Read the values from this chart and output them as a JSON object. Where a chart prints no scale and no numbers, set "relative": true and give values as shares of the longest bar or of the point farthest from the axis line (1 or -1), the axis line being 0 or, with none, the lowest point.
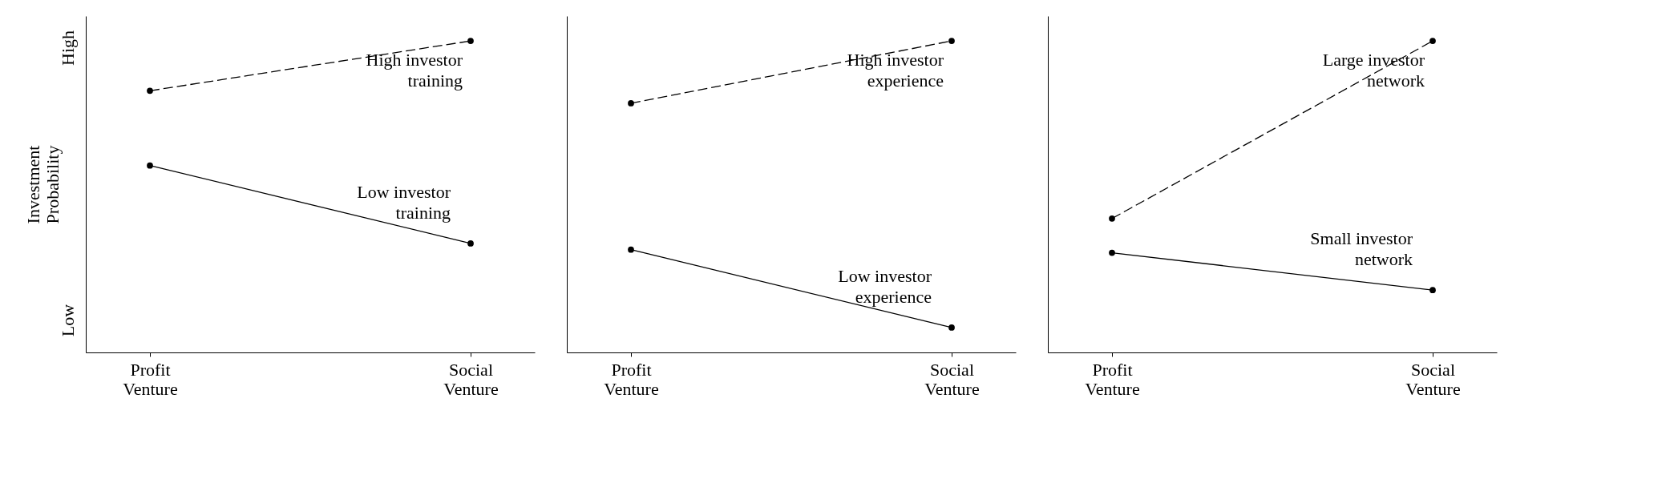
{
  "chart_data": [
    {
      "type": "line",
      "relative": true,
      "ylabel": "Investment Probability",
      "annotations": [
        "High",
        "Low"
      ],
      "categories": [
        "Profit Venture",
        "Social Venture"
      ],
      "marker": "circle",
      "series": [
        {
          "name": "High investor training",
          "color": "#000000",
          "line_style": "dashed",
          "values": [
            0.84,
            1
          ]
        },
        {
          "name": "Low investor training",
          "color": "#000000",
          "line_style": "solid",
          "values": [
            0.6,
            0.35
          ]
        }
      ]
    },
    {
      "type": "line",
      "relative": true,
      "categories": [
        "Profit Venture",
        "Social Venture"
      ],
      "marker": "circle",
      "series": [
        {
          "name": "High investor experience",
          "color": "#000000",
          "line_style": "dashed",
          "values": [
            0.8,
            1
          ]
        },
        {
          "name": "Low investor experience",
          "color": "#000000",
          "line_style": "solid",
          "values": [
            0.33,
            0.08
          ]
        }
      ]
    },
    {
      "type": "line",
      "relative": true,
      "categories": [
        "Profit Venture",
        "Social Venture"
      ],
      "marker": "circle",
      "series": [
        {
          "name": "Large investor network",
          "color": "#000000",
          "line_style": "dashed",
          "values": [
            0.43,
            1
          ]
        },
        {
          "name": "Small investor network",
          "color": "#000000",
          "line_style": "solid",
          "values": [
            0.32,
            0.2
          ]
        }
      ]
    }
  ]
}
